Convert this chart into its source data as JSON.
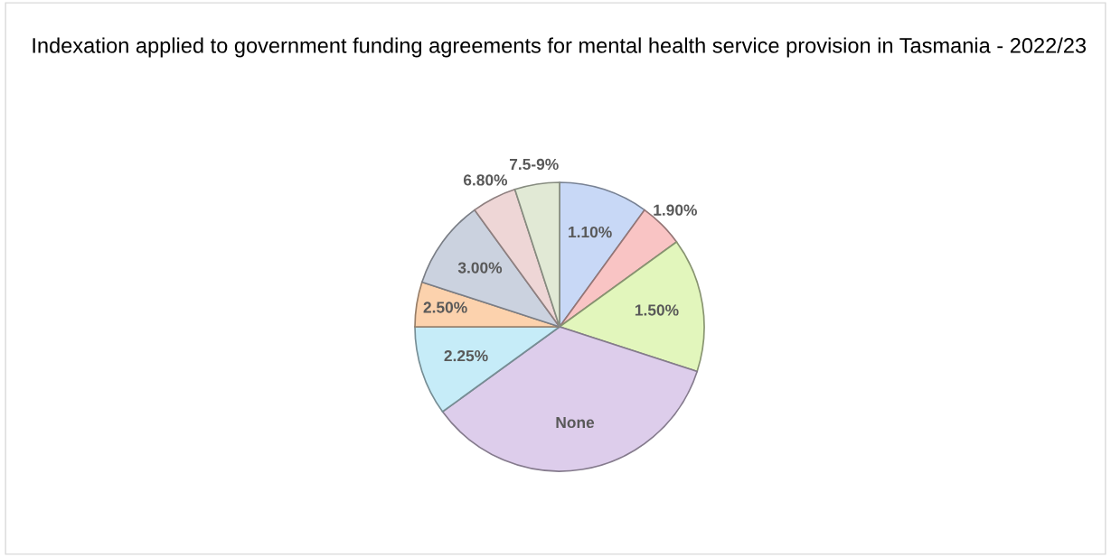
{
  "chart_data": {
    "type": "pie",
    "title": "Indexation applied to government funding agreements for mental health service provision in Tasmania - 2022/23",
    "categories": [
      "1.10%",
      "1.90%",
      "1.50%",
      "None",
      "2.25%",
      "2.50%",
      "3.00%",
      "6.80%",
      "7.5-9%"
    ],
    "values": [
      10,
      5,
      15,
      35,
      10,
      5,
      10,
      5,
      5
    ],
    "colors": [
      "#c8d8f6",
      "#f9c4c4",
      "#e2f6bc",
      "#ddcdeb",
      "#c6ecf8",
      "#fcd2ad",
      "#cbd2df",
      "#eed6d6",
      "#e1e9d5"
    ],
    "legend": false
  }
}
